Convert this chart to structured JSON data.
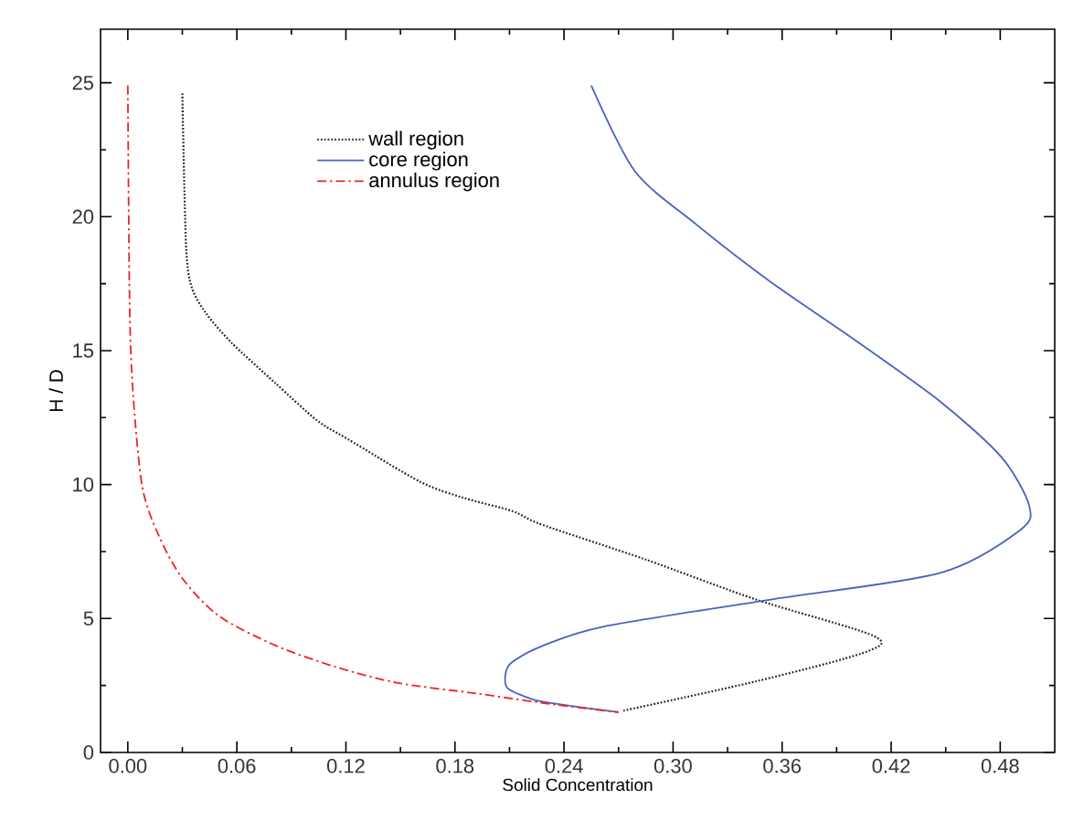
{
  "chart_data": {
    "type": "line",
    "xlabel": "Solid Concentration",
    "ylabel": "H / D",
    "xlim": [
      -0.015,
      0.51
    ],
    "ylim": [
      0,
      27
    ],
    "xticks": [
      {
        "value": 0,
        "label": "0.00"
      },
      {
        "value": 0.06,
        "label": "0.06"
      },
      {
        "value": 0.12,
        "label": "0.12"
      },
      {
        "value": 0.18,
        "label": "0.18"
      },
      {
        "value": 0.24,
        "label": "0.24"
      },
      {
        "value": 0.3,
        "label": "0.30"
      },
      {
        "value": 0.36,
        "label": "0.36"
      },
      {
        "value": 0.42,
        "label": "0.42"
      },
      {
        "value": 0.48,
        "label": "0.48"
      }
    ],
    "yticks": [
      0,
      5,
      10,
      15,
      20,
      25
    ],
    "grid": false,
    "legend": "top",
    "marker": "none",
    "series": [
      {
        "name": "wall region",
        "color": "#222222",
        "line_style": "dotted",
        "x": [
          0.03,
          0.032,
          0.035,
          0.043,
          0.057,
          0.081,
          0.104,
          0.121,
          0.161,
          0.185,
          0.212,
          0.228,
          0.285,
          0.346,
          0.41,
          0.406,
          0.346,
          0.272
        ],
        "values": [
          24.6,
          19.0,
          17.4,
          16.4,
          15.3,
          13.8,
          12.4,
          11.7,
          10.1,
          9.5,
          9.0,
          8.5,
          7.2,
          5.7,
          4.36,
          3.75,
          2.66,
          1.55
        ]
      },
      {
        "name": "core region",
        "color": "#4a62c0",
        "line_style": "solid",
        "x": [
          0.255,
          0.279,
          0.313,
          0.353,
          0.4,
          0.447,
          0.481,
          0.496,
          0.491,
          0.447,
          0.353,
          0.262,
          0.229,
          0.212,
          0.208,
          0.209,
          0.222,
          0.232,
          0.27
        ],
        "values": [
          24.9,
          21.7,
          19.7,
          17.6,
          15.4,
          13.1,
          11.0,
          9.2,
          8.3,
          6.7,
          5.7,
          4.7,
          4.0,
          3.4,
          3.0,
          2.4,
          2.0,
          1.85,
          1.5
        ]
      },
      {
        "name": "annulus region",
        "color": "#ee2222",
        "line_style": "dashdot",
        "x": [
          0.0,
          0.001,
          0.003,
          0.008,
          0.017,
          0.03,
          0.05,
          0.081,
          0.114,
          0.148,
          0.192,
          0.229,
          0.27
        ],
        "values": [
          24.9,
          16.7,
          13.3,
          9.9,
          8.1,
          6.5,
          5.1,
          4.0,
          3.2,
          2.6,
          2.2,
          1.84,
          1.5
        ]
      }
    ]
  }
}
